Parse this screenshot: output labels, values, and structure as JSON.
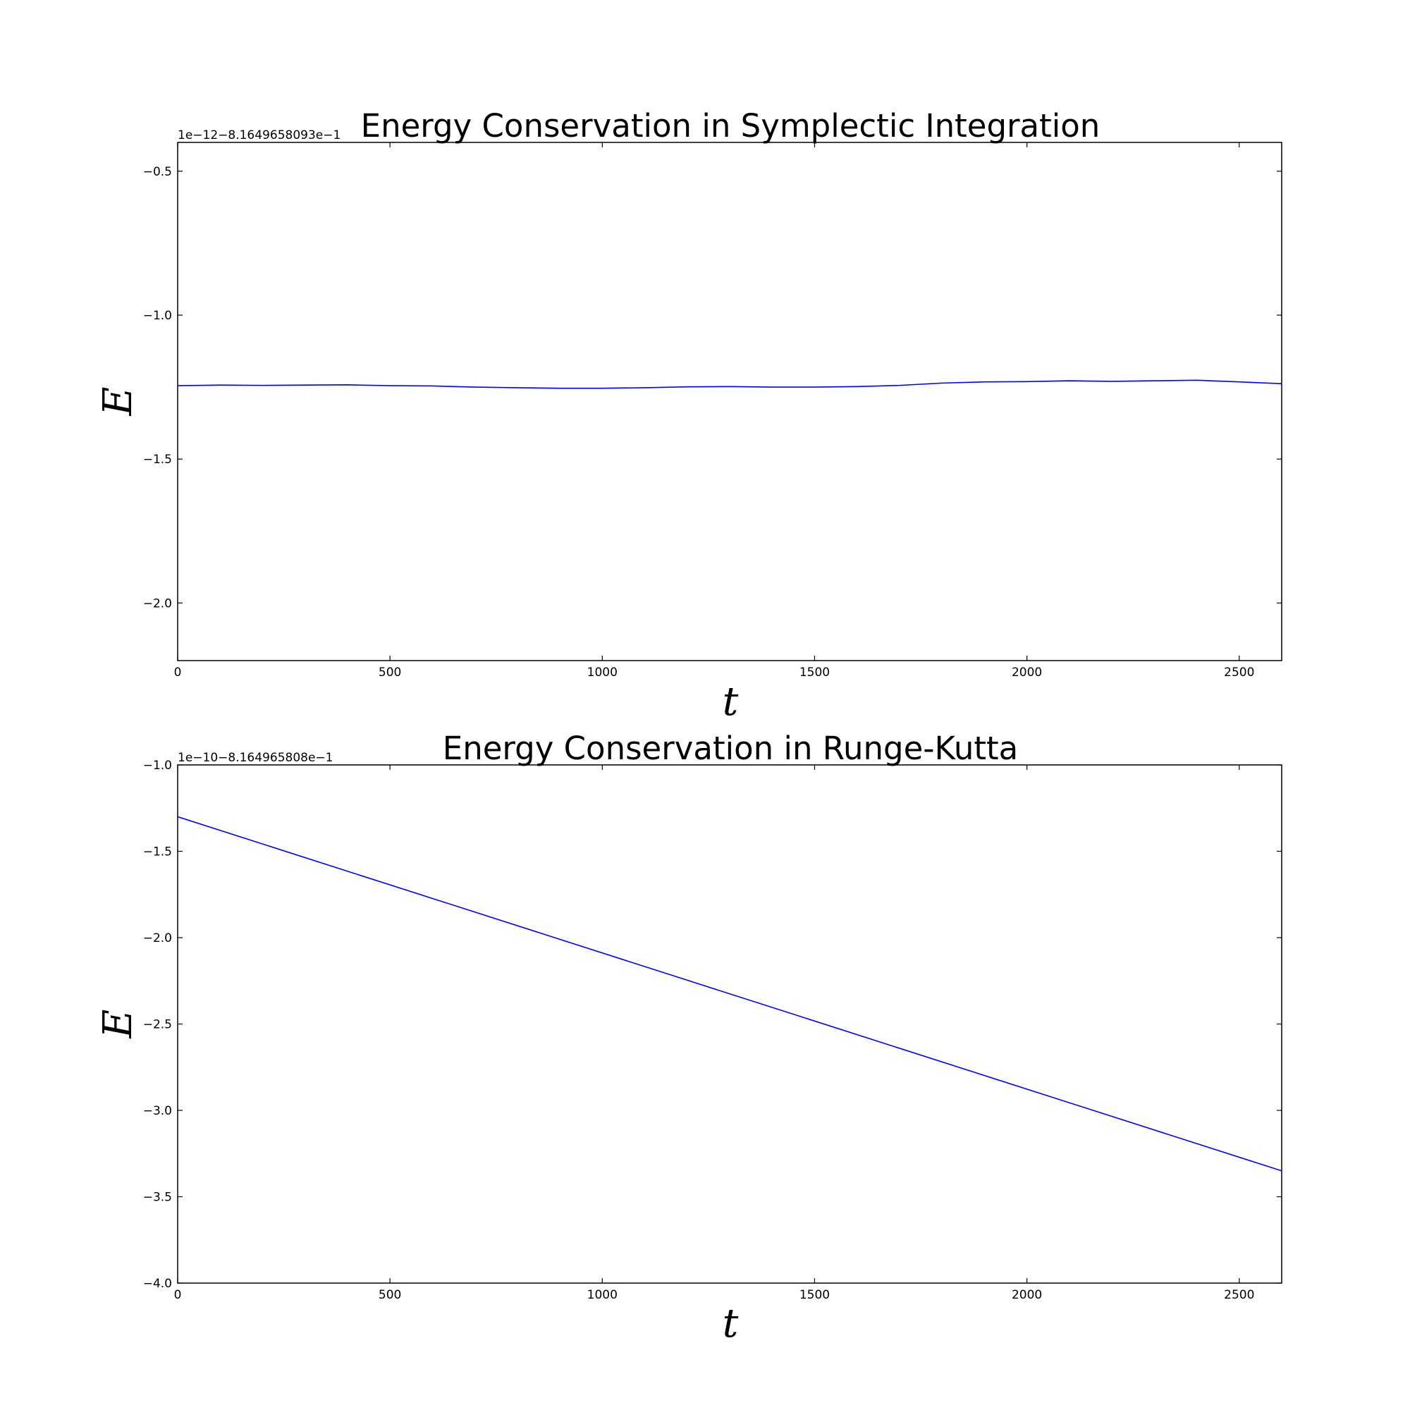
{
  "chart_data": [
    {
      "type": "line",
      "title": "Energy Conservation in Symplectic Integration",
      "xlabel": "t",
      "ylabel": "E",
      "offset_text": "1e−12−8.1649658093e−1",
      "xlim": [
        0,
        2600
      ],
      "ylim": [
        -2.2,
        -0.4
      ],
      "xticks": [
        0,
        500,
        1000,
        1500,
        2000,
        2500
      ],
      "xtick_labels": [
        "0",
        "500",
        "1000",
        "1500",
        "2000",
        "2500"
      ],
      "yticks": [
        -0.5,
        -1.0,
        -1.5,
        -2.0
      ],
      "ytick_labels": [
        "−0.5",
        "−1.0",
        "−1.5",
        "−2.0"
      ],
      "grid": false,
      "line_color": "#0000ff",
      "series": [
        {
          "x": [
            0,
            100,
            200,
            300,
            400,
            500,
            600,
            700,
            800,
            900,
            1000,
            1100,
            1200,
            1300,
            1400,
            1500,
            1600,
            1700,
            1800,
            1900,
            2000,
            2100,
            2200,
            2300,
            2400,
            2500,
            2600
          ],
          "y": [
            -1.245,
            -1.243,
            -1.244,
            -1.243,
            -1.242,
            -1.245,
            -1.246,
            -1.25,
            -1.252,
            -1.254,
            -1.254,
            -1.252,
            -1.249,
            -1.248,
            -1.25,
            -1.25,
            -1.248,
            -1.244,
            -1.236,
            -1.232,
            -1.231,
            -1.228,
            -1.23,
            -1.228,
            -1.226,
            -1.232,
            -1.238
          ]
        }
      ]
    },
    {
      "type": "line",
      "title": "Energy Conservation in Runge-Kutta",
      "xlabel": "t",
      "ylabel": "E",
      "offset_text": "1e−10−8.164965808e−1",
      "xlim": [
        0,
        2600
      ],
      "ylim": [
        -4.0,
        -1.0
      ],
      "xticks": [
        0,
        500,
        1000,
        1500,
        2000,
        2500
      ],
      "xtick_labels": [
        "0",
        "500",
        "1000",
        "1500",
        "2000",
        "2500"
      ],
      "yticks": [
        -1.0,
        -1.5,
        -2.0,
        -2.5,
        -3.0,
        -3.5,
        -4.0
      ],
      "ytick_labels": [
        "−1.0",
        "−1.5",
        "−2.0",
        "−2.5",
        "−3.0",
        "−3.5",
        "−4.0"
      ],
      "grid": false,
      "line_color": "#0000ff",
      "series": [
        {
          "x": [
            0,
            2600
          ],
          "y": [
            -1.3,
            -3.35
          ]
        }
      ]
    }
  ]
}
